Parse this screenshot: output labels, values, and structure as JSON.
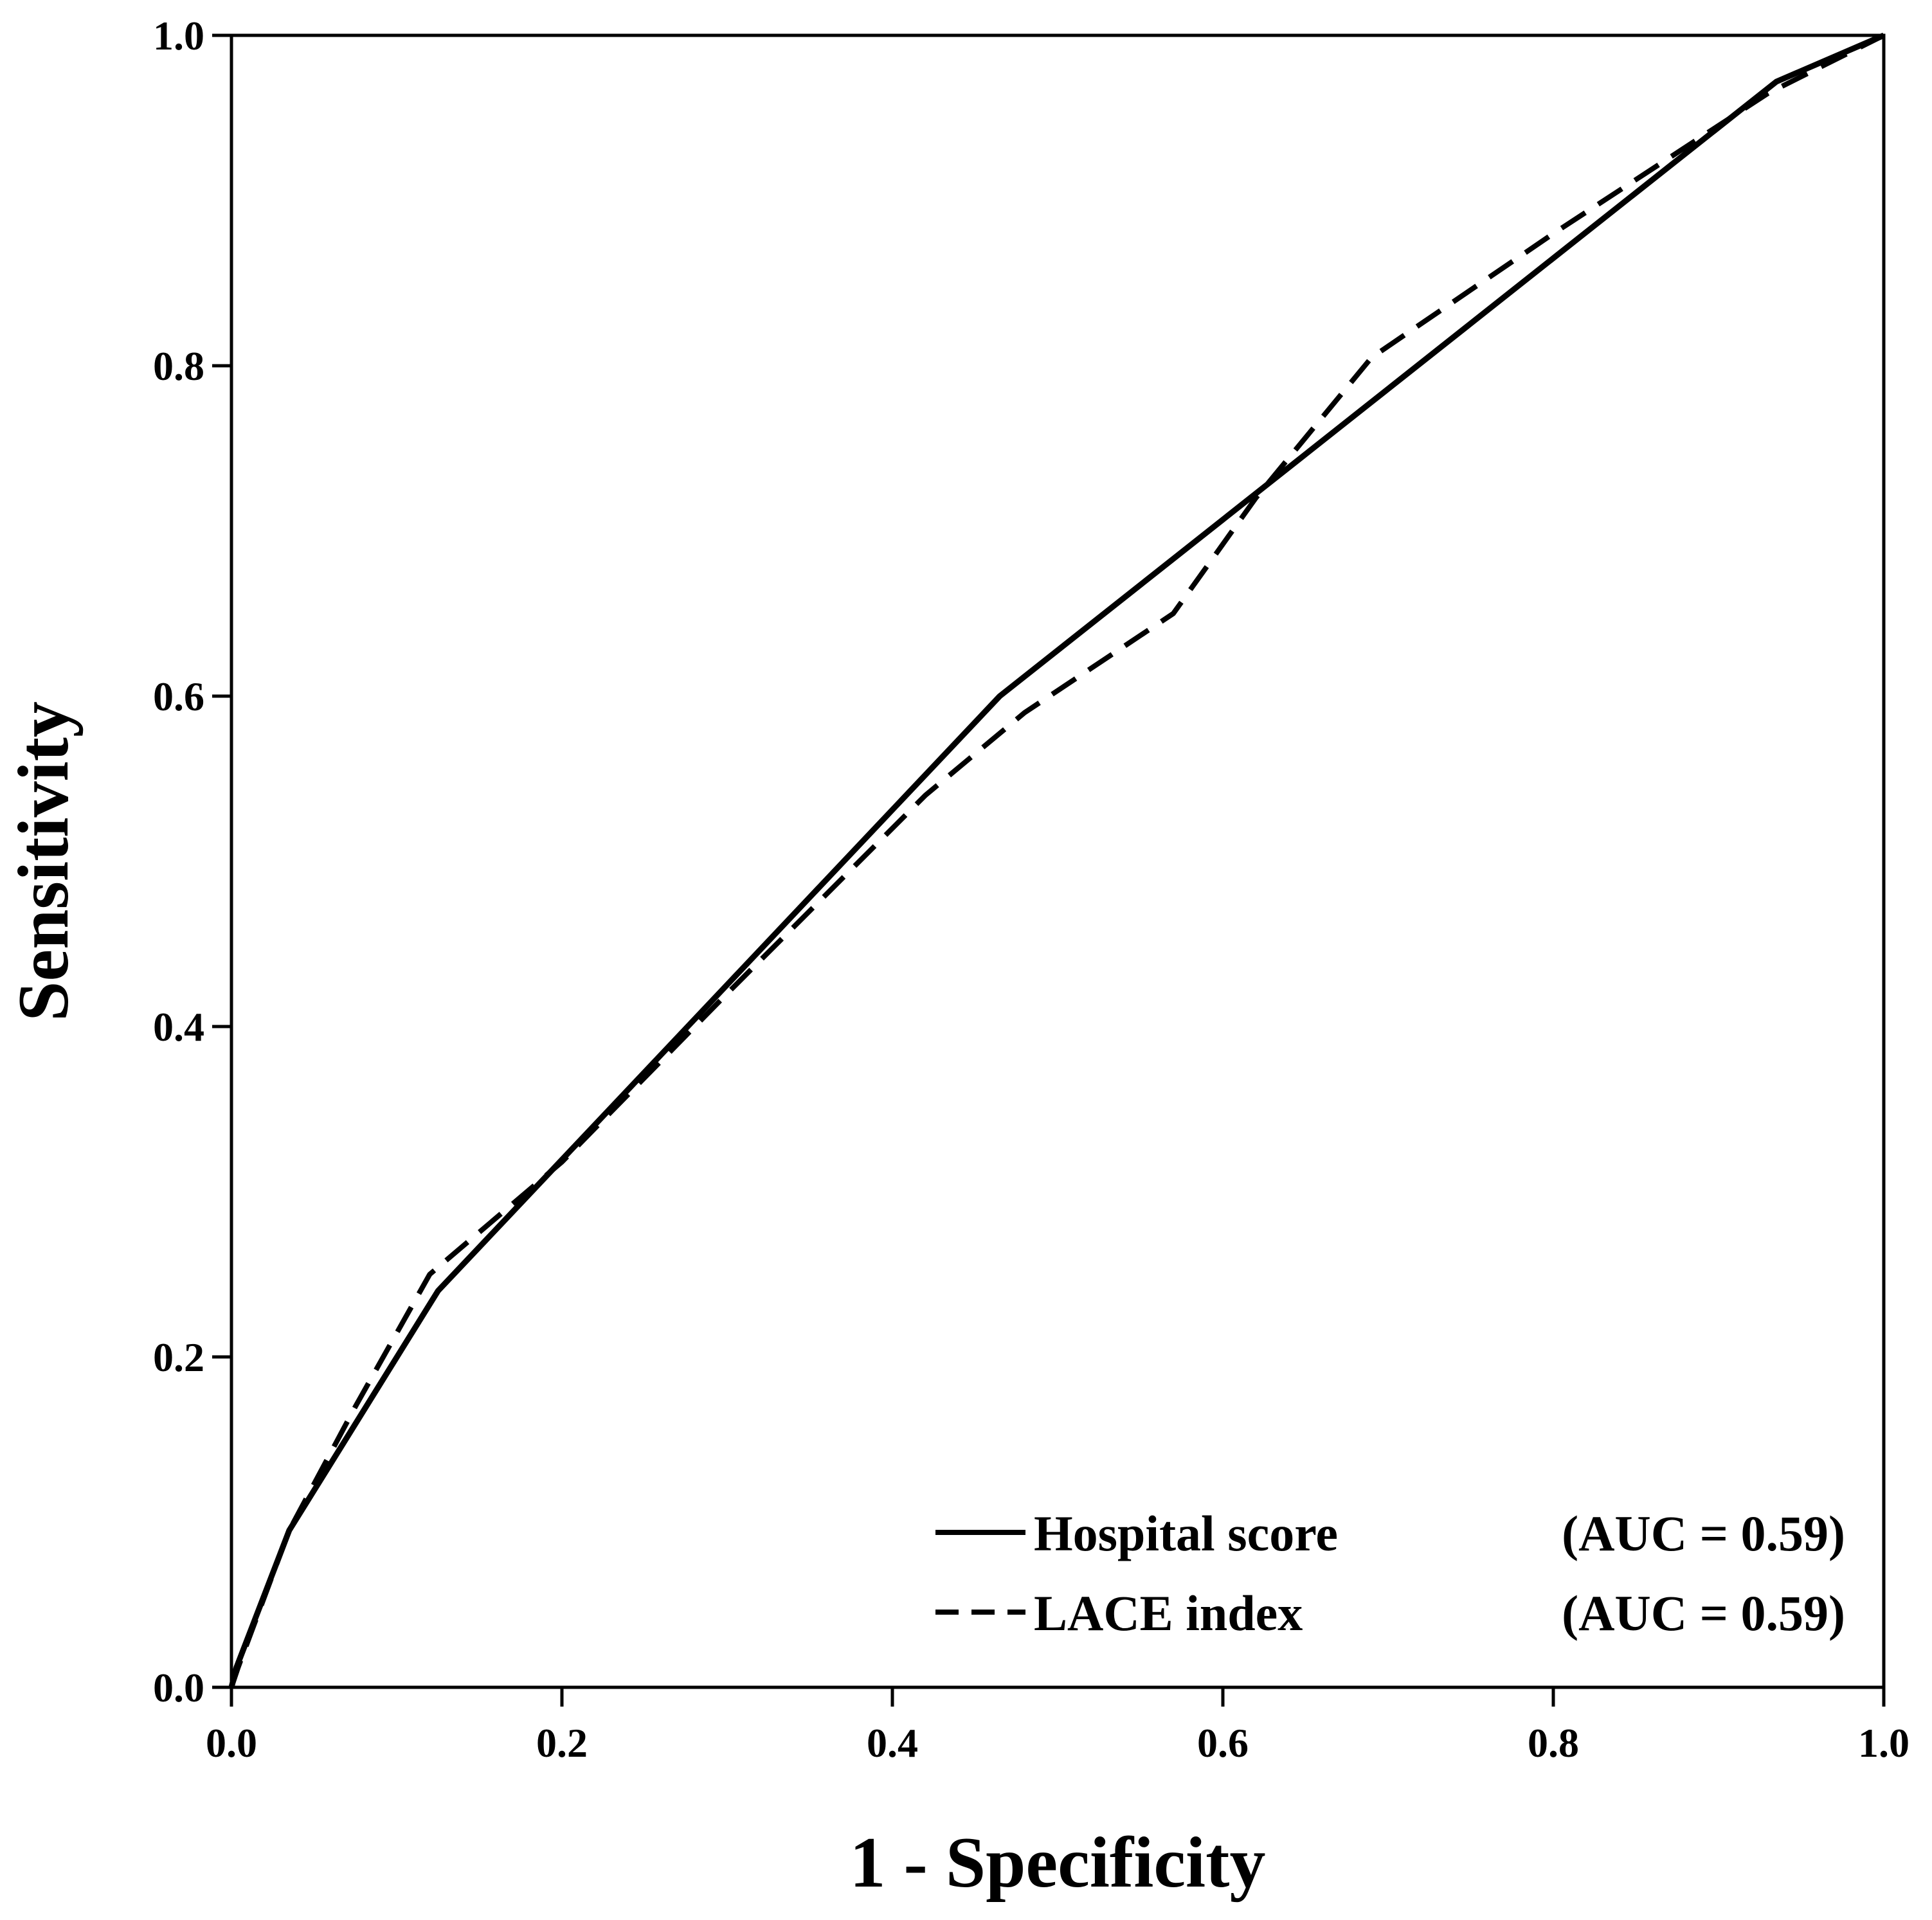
{
  "chart_data": {
    "type": "line",
    "title": "",
    "xlabel": "1 - Specificity",
    "ylabel": "Sensitivity",
    "xlim": [
      0,
      1
    ],
    "ylim": [
      0,
      1
    ],
    "x_ticks": [
      {
        "value": 0.0,
        "label": "0.0"
      },
      {
        "value": 0.2,
        "label": "0.2"
      },
      {
        "value": 0.4,
        "label": "0.4"
      },
      {
        "value": 0.6,
        "label": "0.6"
      },
      {
        "value": 0.8,
        "label": "0.8"
      },
      {
        "value": 1.0,
        "label": "1.0"
      }
    ],
    "y_ticks": [
      {
        "value": 0.0,
        "label": "0.0"
      },
      {
        "value": 0.2,
        "label": "0.2"
      },
      {
        "value": 0.4,
        "label": "0.4"
      },
      {
        "value": 0.6,
        "label": "0.6"
      },
      {
        "value": 0.8,
        "label": "0.8"
      },
      {
        "value": 1.0,
        "label": "1.0"
      }
    ],
    "grid": false,
    "legend_position": "bottom-right",
    "series": [
      {
        "name": "Hospital score",
        "auc_label": "(AUC = 0.59)",
        "style": "solid",
        "color": "#000000",
        "x": [
          0.0,
          0.003,
          0.035,
          0.125,
          0.465,
          0.935,
          1.0
        ],
        "y": [
          0.0,
          0.012,
          0.095,
          0.24,
          0.6,
          0.972,
          1.0
        ]
      },
      {
        "name": "LACE index",
        "auc_label": "(AUC = 0.59)",
        "style": "dashed",
        "color": "#000000",
        "x": [
          0.0,
          0.004,
          0.035,
          0.075,
          0.12,
          0.2,
          0.3,
          0.42,
          0.48,
          0.57,
          0.62,
          0.69,
          0.8,
          0.93,
          1.0
        ],
        "y": [
          0.0,
          0.012,
          0.095,
          0.17,
          0.25,
          0.318,
          0.42,
          0.54,
          0.59,
          0.65,
          0.72,
          0.805,
          0.88,
          0.965,
          1.0
        ]
      }
    ]
  }
}
